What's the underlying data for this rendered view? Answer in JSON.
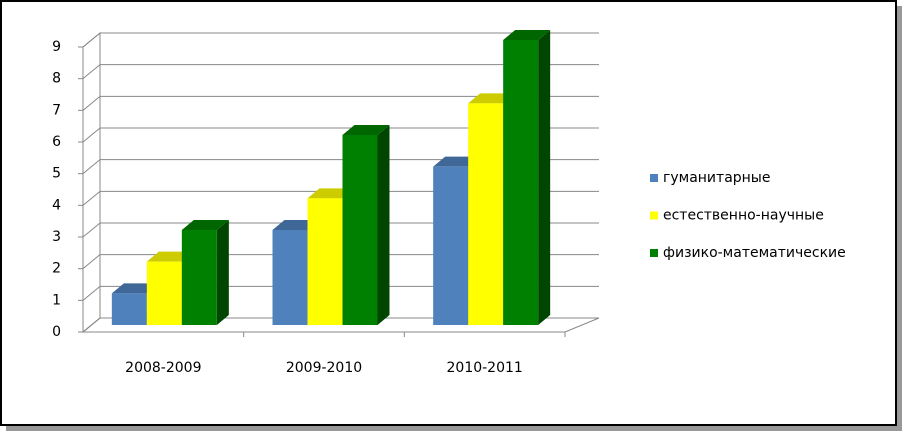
{
  "chart_data": {
    "type": "bar3d",
    "categories": [
      "2008-2009",
      "2009-2010",
      "2010-2011"
    ],
    "series": [
      {
        "name": "гуманитарные",
        "color": "#4f81bd",
        "values": [
          1,
          3,
          5
        ]
      },
      {
        "name": "естественно-научные",
        "color": "#ffff00",
        "values": [
          2,
          4,
          7
        ]
      },
      {
        "name": "физико-математические",
        "color": "#008000",
        "values": [
          3,
          6,
          9
        ]
      }
    ],
    "ylim": [
      0,
      9
    ],
    "yticks": [
      0,
      1,
      2,
      3,
      4,
      5,
      6,
      7,
      8,
      9
    ],
    "grid": true,
    "legend": "right"
  }
}
